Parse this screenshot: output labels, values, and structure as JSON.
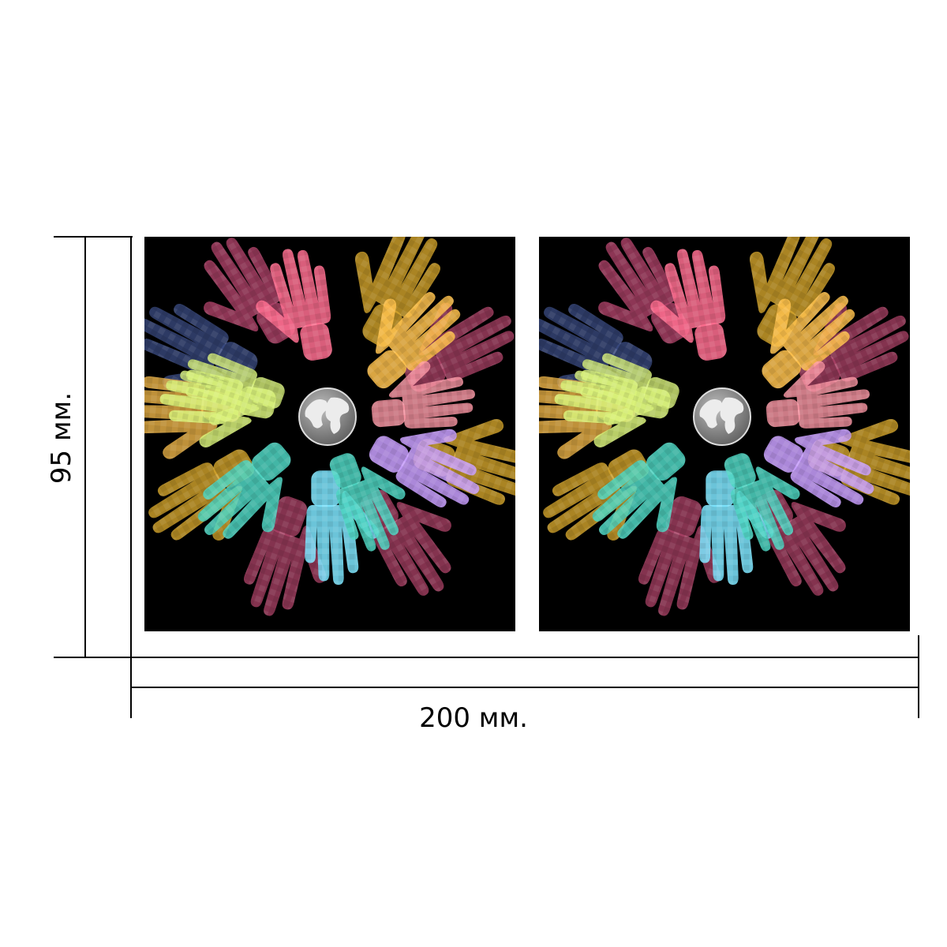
{
  "dimensions": {
    "width_label": "200 мм.",
    "height_label": "95 мм."
  },
  "artwork": {
    "panel_count": 2,
    "background_color": "#000000",
    "motif": "rainbow-hands-around-globe",
    "hand_colors": [
      "#ff6f91",
      "#ffc24d",
      "#d9f27a",
      "#4fd6c3",
      "#7ee6ff",
      "#c9a0ff",
      "#ff9aa8",
      "#b0446a",
      "#d4a52c",
      "#3c4e86"
    ]
  },
  "globe": {
    "color": "#9a9a9a",
    "land_color": "#ececec"
  },
  "lines": {
    "color": "#000000"
  }
}
